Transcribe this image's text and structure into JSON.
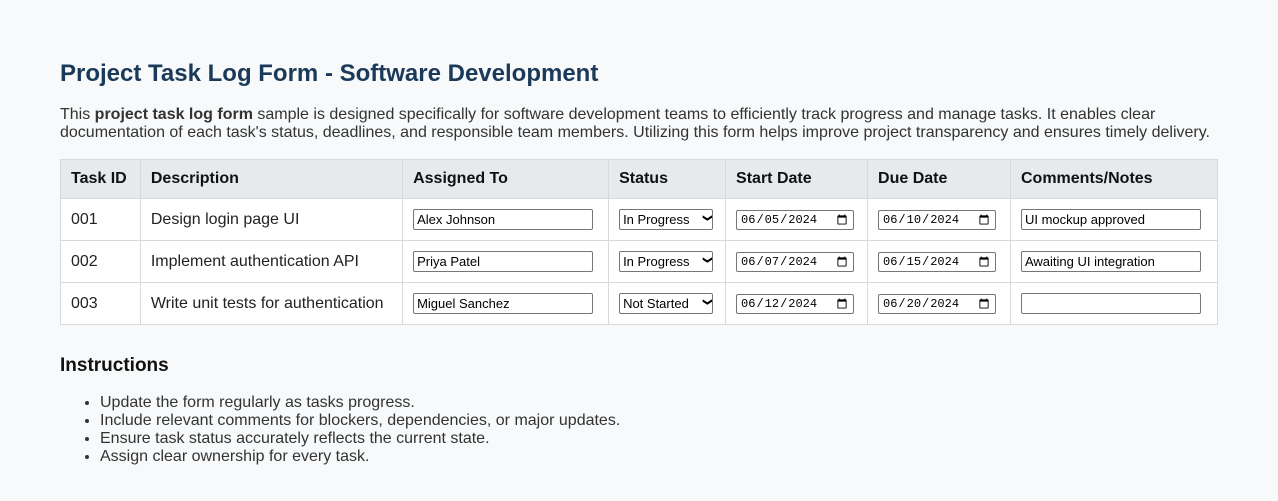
{
  "title": "Project Task Log Form - Software Development",
  "intro": {
    "pre": "This ",
    "bold": "project task log form",
    "post": " sample is designed specifically for software development teams to efficiently track progress and manage tasks. It enables clear documentation of each task's status, deadlines, and responsible team members. Utilizing this form helps improve project transparency and ensures timely delivery."
  },
  "table": {
    "headers": [
      "Task ID",
      "Description",
      "Assigned To",
      "Status",
      "Start Date",
      "Due Date",
      "Comments/Notes"
    ],
    "rows": [
      {
        "id": "001",
        "desc": "Design login page UI",
        "assigned": "Alex Johnson",
        "status": "In Progress",
        "start": "2024-06-05",
        "due": "2024-06-10",
        "comments": "UI mockup approved"
      },
      {
        "id": "002",
        "desc": "Implement authentication API",
        "assigned": "Priya Patel",
        "status": "In Progress",
        "start": "2024-06-07",
        "due": "2024-06-15",
        "comments": "Awaiting UI integration"
      },
      {
        "id": "003",
        "desc": "Write unit tests for authentication",
        "assigned": "Miguel Sanchez",
        "status": "Not Started",
        "start": "2024-06-12",
        "due": "2024-06-20",
        "comments": ""
      }
    ]
  },
  "instructions": {
    "heading": "Instructions",
    "items": [
      "Update the form regularly as tasks progress.",
      "Include relevant comments for blockers, dependencies, or major updates.",
      "Ensure task status accurately reflects the current state.",
      "Assign clear ownership for every task."
    ]
  }
}
